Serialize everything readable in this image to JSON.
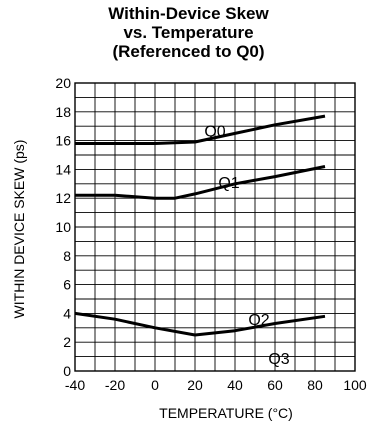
{
  "chart_data": {
    "type": "line",
    "title": [
      "Within-Device Skew",
      "vs. Temperature",
      "(Referenced to Q0)"
    ],
    "xlabel": "TEMPERATURE (°C)",
    "ylabel": "WITHIN DEVICE SKEW (ps)",
    "xlim": [
      -40,
      100
    ],
    "ylim": [
      0,
      20
    ],
    "x_ticks": [
      "-40",
      "-20",
      "0",
      "20",
      "40",
      "60",
      "80",
      "100"
    ],
    "y_ticks": [
      "0",
      "2",
      "4",
      "6",
      "8",
      "10",
      "12",
      "14",
      "16",
      "18",
      "20"
    ],
    "grid": true,
    "series": [
      {
        "name": "Q0",
        "x": [
          -40,
          0,
          20,
          40,
          60,
          85
        ],
        "y": [
          15.8,
          15.8,
          15.9,
          16.5,
          17.1,
          17.7
        ]
      },
      {
        "name": "Q1",
        "x": [
          -40,
          -20,
          0,
          10,
          20,
          40,
          60,
          85
        ],
        "y": [
          12.2,
          12.2,
          12.0,
          12.0,
          12.3,
          13.0,
          13.5,
          14.2
        ]
      },
      {
        "name": "Q2",
        "x": [
          -40,
          -20,
          0,
          20,
          40,
          60,
          85
        ],
        "y": [
          4.0,
          3.6,
          3.0,
          2.5,
          2.8,
          3.3,
          3.8
        ]
      },
      {
        "name": "Q3",
        "x": [
          -40,
          85
        ],
        "y": [
          0,
          0
        ]
      }
    ]
  }
}
